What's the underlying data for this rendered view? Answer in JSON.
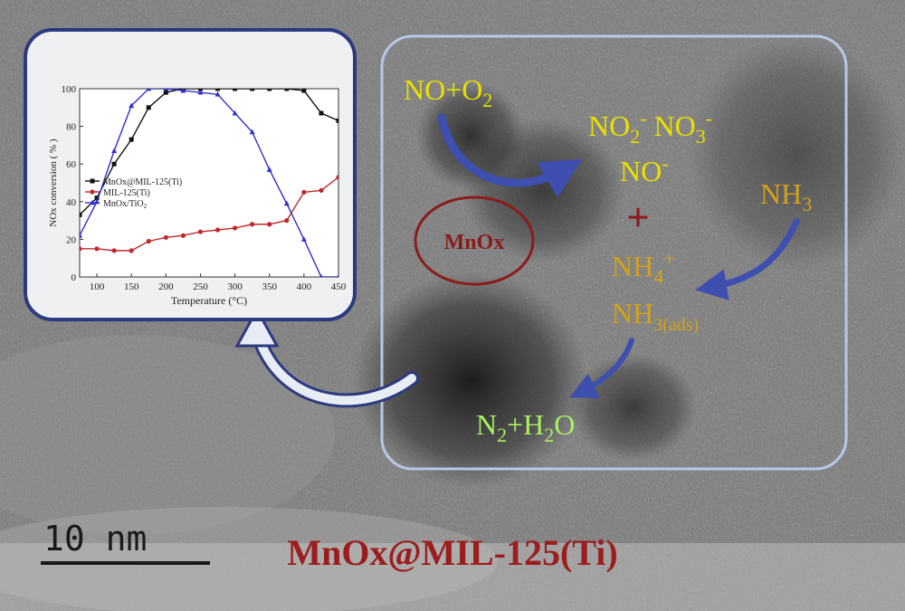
{
  "colors": {
    "panel_border_chart": "#2c3a80",
    "panel_border_mechanism": "#b6c8e8",
    "species_yellow": "#e8e000",
    "species_gold": "#d4a21a",
    "product_green": "#a8f060",
    "mnox_red": "#8a1c1c",
    "plus_red": "#8b1a1a",
    "arrow_blue": "#3e4fb0",
    "series_black": "#111111",
    "series_red": "#c0282c",
    "series_blue": "#3030c8"
  },
  "diagram": {
    "title": "MnOx@MIL-125(Ti)",
    "scale_bar_label": "10 nm",
    "mnox_label": "MnOx",
    "plus_sign": "+",
    "species": {
      "no_o2": {
        "a": "NO+O",
        "sub": "2"
      },
      "nitrite_nitrate": {
        "a": "NO",
        "sub1": "2",
        "sup1": "-",
        "b": " NO",
        "sub2": "3",
        "sup2": "-"
      },
      "no_minus": {
        "a": "NO",
        "sup": "-"
      },
      "nh3": {
        "a": "NH",
        "sub": "3"
      },
      "nh4": {
        "a": "NH",
        "sub": "4",
        "sup": "+"
      },
      "nh3_ads": {
        "a": "NH",
        "sub": "3(ads)"
      },
      "products": {
        "a": "N",
        "sub1": "2",
        "b": "+H",
        "sub2": "2",
        "c": "O"
      }
    }
  },
  "chart_data": {
    "type": "line",
    "xlabel": "Temperature (°C)",
    "ylabel": "NOx conversion ( % )",
    "xlim": [
      75,
      450
    ],
    "ylim": [
      0,
      100
    ],
    "xticks": [
      100,
      150,
      200,
      250,
      300,
      350,
      400,
      450
    ],
    "yticks": [
      0,
      20,
      40,
      60,
      80,
      100
    ],
    "legend_position": "left-middle",
    "series": [
      {
        "name": "MnOx@MIL-125(Ti)",
        "color": "#111111",
        "marker": "square",
        "x": [
          75,
          100,
          125,
          150,
          175,
          200,
          225,
          250,
          275,
          300,
          325,
          350,
          375,
          400,
          425,
          450
        ],
        "y": [
          33,
          42,
          60,
          73,
          90,
          98,
          100,
          100,
          100,
          100,
          100,
          100,
          100,
          99,
          87,
          83
        ]
      },
      {
        "name": "MIL-125(Ti)",
        "color": "#c0282c",
        "marker": "circle",
        "x": [
          75,
          100,
          125,
          150,
          175,
          200,
          225,
          250,
          275,
          300,
          325,
          350,
          375,
          400,
          425,
          450
        ],
        "y": [
          15,
          15,
          14,
          14,
          19,
          21,
          22,
          24,
          25,
          26,
          28,
          28,
          30,
          45,
          46,
          53
        ]
      },
      {
        "name_a": "MnOx/TiO",
        "name_sub": "2",
        "color": "#3030c8",
        "marker": "triangle",
        "x": [
          75,
          100,
          125,
          150,
          175,
          200,
          225,
          250,
          275,
          300,
          325,
          350,
          375,
          400,
          425,
          450
        ],
        "y": [
          22,
          40,
          67,
          91,
          100,
          100,
          99,
          98,
          97,
          87,
          77,
          57,
          39,
          20,
          0,
          0
        ]
      }
    ]
  }
}
